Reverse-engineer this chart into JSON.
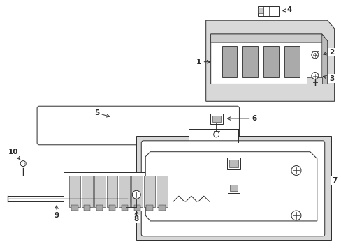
{
  "background_color": "#ffffff",
  "fig_width": 4.89,
  "fig_height": 3.6,
  "dpi": 100,
  "line_color": "#2a2a2a",
  "gray_fill": "#d8d8d8",
  "lw": 0.7
}
